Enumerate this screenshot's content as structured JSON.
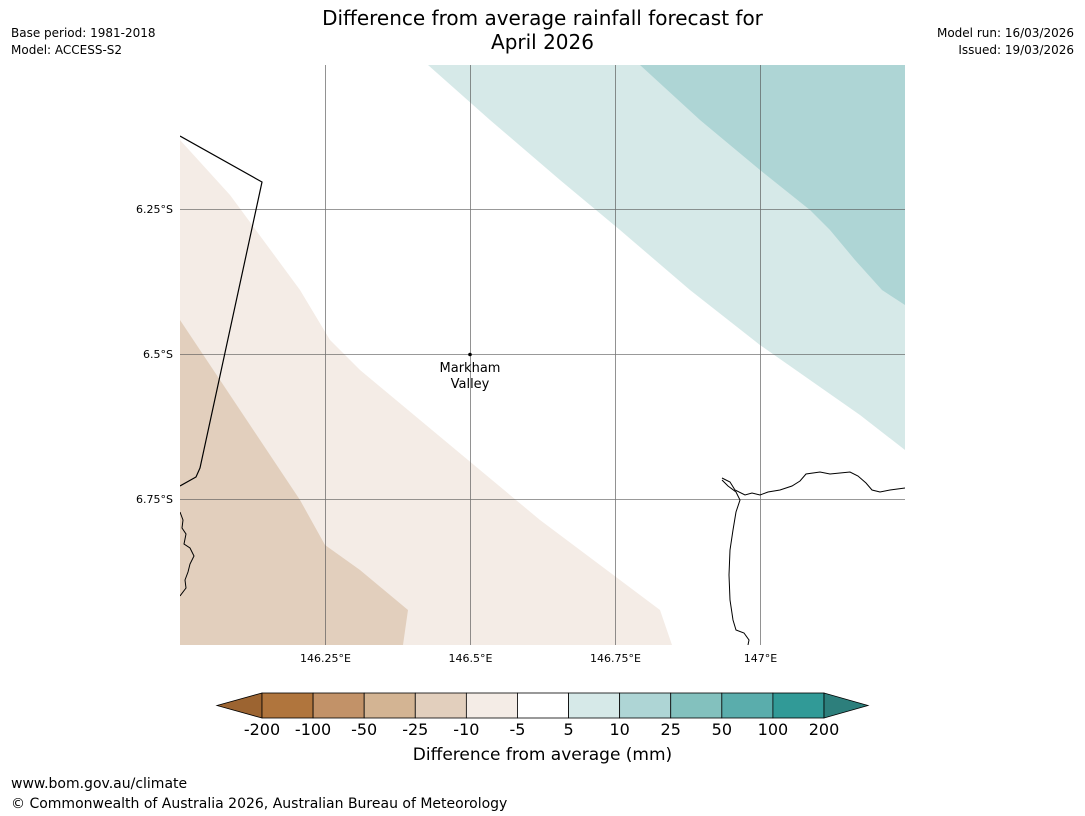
{
  "title_line1": "Difference from average rainfall forecast for",
  "title_line2": "April 2026",
  "meta_left": {
    "base_period": "Base period: 1981-2018",
    "model": "Model: ACCESS-S2"
  },
  "meta_right": {
    "model_run": "Model run: 16/03/2026",
    "issued": "Issued: 19/03/2026"
  },
  "map": {
    "lat_labels": [
      "6.25°S",
      "6.5°S",
      "6.75°S"
    ],
    "lon_labels": [
      "146.25°E",
      "146.5°E",
      "146.75°E",
      "147°E"
    ],
    "place": {
      "name_line1": "Markham",
      "name_line2": "Valley"
    }
  },
  "colorbar": {
    "title": "Difference from average (mm)",
    "ticks": [
      "-200",
      "-100",
      "-50",
      "-25",
      "-10",
      "-5",
      "5",
      "10",
      "25",
      "50",
      "100",
      "200"
    ],
    "colors": [
      "#9c6431",
      "#b0753d",
      "#c29268",
      "#d3b493",
      "#e2cfbd",
      "#f4ece6",
      "#ffffff",
      "#d6e9e8",
      "#aed5d5",
      "#83c1be",
      "#5aadac",
      "#319a97",
      "#2d7f7c"
    ]
  },
  "footer": {
    "url": "www.bom.gov.au/climate",
    "copyright": "© Commonwealth of Australia 2026, Australian Bureau of Meteorology"
  }
}
